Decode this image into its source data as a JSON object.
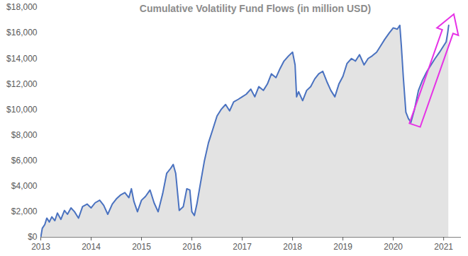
{
  "chart_data": {
    "type": "area",
    "title": "Cumulative Volatility Fund Flows (in million USD)",
    "color": "#4a72c0",
    "grid": false,
    "x": [
      2013.0,
      2013.03,
      2013.08,
      2013.12,
      2013.17,
      2013.22,
      2013.28,
      2013.33,
      2013.4,
      2013.47,
      2013.53,
      2013.6,
      2013.67,
      2013.75,
      2013.83,
      2013.92,
      2014.0,
      2014.08,
      2014.17,
      2014.25,
      2014.33,
      2014.42,
      2014.5,
      2014.58,
      2014.67,
      2014.75,
      2014.8,
      2014.85,
      2014.92,
      2015.0,
      2015.08,
      2015.17,
      2015.25,
      2015.33,
      2015.42,
      2015.5,
      2015.58,
      2015.63,
      2015.68,
      2015.75,
      2015.83,
      2015.9,
      2015.96,
      2016.0,
      2016.05,
      2016.1,
      2016.17,
      2016.25,
      2016.33,
      2016.42,
      2016.5,
      2016.58,
      2016.67,
      2016.75,
      2016.83,
      2016.92,
      2017.0,
      2017.08,
      2017.17,
      2017.25,
      2017.33,
      2017.42,
      2017.5,
      2017.58,
      2017.67,
      2017.75,
      2017.83,
      2017.92,
      2018.0,
      2018.05,
      2018.08,
      2018.12,
      2018.2,
      2018.28,
      2018.36,
      2018.44,
      2018.52,
      2018.6,
      2018.68,
      2018.76,
      2018.84,
      2018.92,
      2019.0,
      2019.08,
      2019.17,
      2019.25,
      2019.33,
      2019.42,
      2019.5,
      2019.58,
      2019.67,
      2019.75,
      2019.83,
      2019.92,
      2020.0,
      2020.08,
      2020.13,
      2020.16,
      2020.2,
      2020.25,
      2020.3,
      2020.35,
      2020.42,
      2020.5,
      2020.58,
      2020.67,
      2020.75,
      2020.83,
      2020.92,
      2021.0,
      2021.05,
      2021.08,
      2021.1
    ],
    "values": [
      0,
      700,
      1000,
      1500,
      1200,
      1600,
      1300,
      1900,
      1400,
      2100,
      1800,
      2300,
      2000,
      1500,
      2400,
      2600,
      2300,
      2700,
      2900,
      2500,
      1800,
      2600,
      3000,
      3300,
      3500,
      3100,
      3800,
      2800,
      2000,
      2900,
      3200,
      3700,
      2700,
      2000,
      3400,
      5000,
      5400,
      5700,
      5000,
      2100,
      2400,
      3800,
      3700,
      2000,
      1700,
      2600,
      4200,
      6000,
      7400,
      8500,
      9500,
      10000,
      10400,
      9900,
      10600,
      10800,
      11000,
      11200,
      11600,
      11000,
      11800,
      11500,
      12000,
      12800,
      12500,
      13200,
      13800,
      14200,
      14500,
      13500,
      11000,
      11400,
      10700,
      11500,
      11800,
      12400,
      12800,
      13000,
      12200,
      11500,
      11000,
      12000,
      12600,
      13600,
      14000,
      13800,
      14300,
      13500,
      14000,
      14200,
      14500,
      15000,
      15500,
      16000,
      16400,
      16300,
      16600,
      15000,
      12500,
      9800,
      9300,
      9000,
      10000,
      11500,
      12300,
      13000,
      13500,
      14000,
      14500,
      15000,
      15300,
      16000,
      16600
    ],
    "xlim": [
      2013,
      2021.35
    ],
    "xticks": [
      2013,
      2014,
      2015,
      2016,
      2017,
      2018,
      2019,
      2020,
      2021
    ],
    "ylim": [
      0,
      18000
    ],
    "yticks": [
      {
        "value": 0,
        "label": "$0"
      },
      {
        "value": 2000,
        "label": "$2,000"
      },
      {
        "value": 4000,
        "label": "$4,000"
      },
      {
        "value": 6000,
        "label": "$6,000"
      },
      {
        "value": 8000,
        "label": "$8,000"
      },
      {
        "value": 10000,
        "label": "$10,000"
      },
      {
        "value": 12000,
        "label": "$12,000"
      },
      {
        "value": 14000,
        "label": "$14,000"
      },
      {
        "value": 16000,
        "label": "$16,000"
      },
      {
        "value": 18000,
        "label": "$18,000"
      }
    ]
  }
}
